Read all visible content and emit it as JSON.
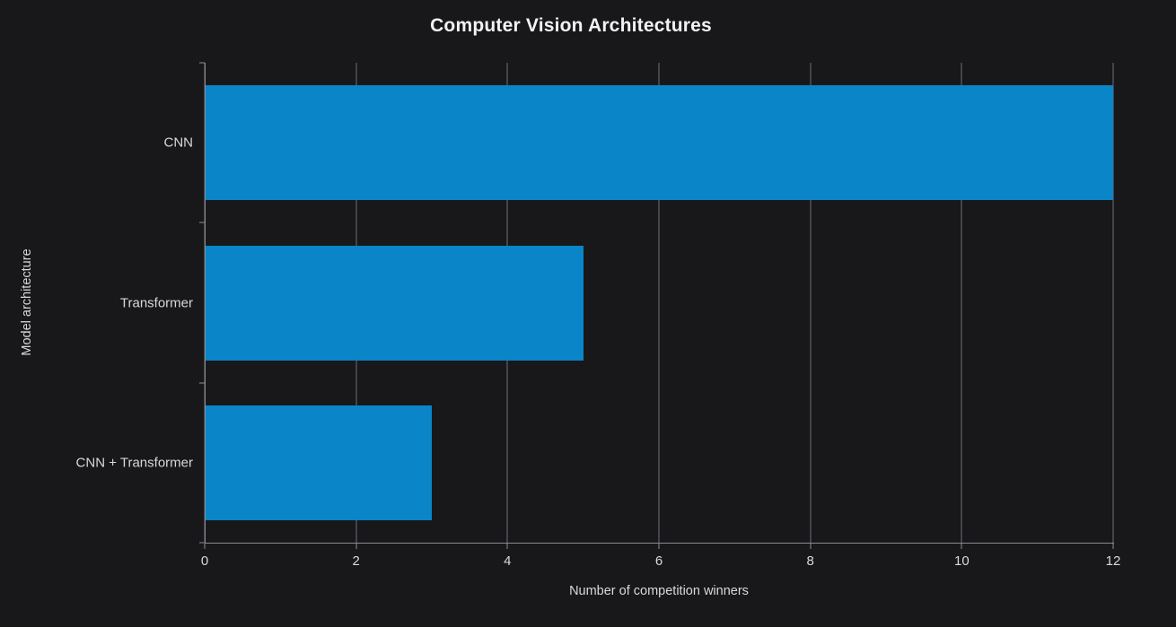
{
  "chart_data": {
    "type": "bar",
    "orientation": "horizontal",
    "title": "Computer Vision Architectures",
    "categories": [
      "CNN",
      "Transformer",
      "CNN + Transformer"
    ],
    "values": [
      12,
      5,
      3
    ],
    "xlabel": "Number of competition winners",
    "ylabel": "Model architecture",
    "xlim": [
      0,
      12
    ],
    "xticks": [
      0,
      2,
      4,
      6,
      8,
      10,
      12
    ],
    "grid": true,
    "legend": "none",
    "bar_color": "#0a85c8",
    "background_color": "#18181a",
    "text_color": "#d9d9d9",
    "title_color": "#f2f2f2",
    "grid_color": "#6e6e78",
    "axis_color": "#8b8b94"
  }
}
